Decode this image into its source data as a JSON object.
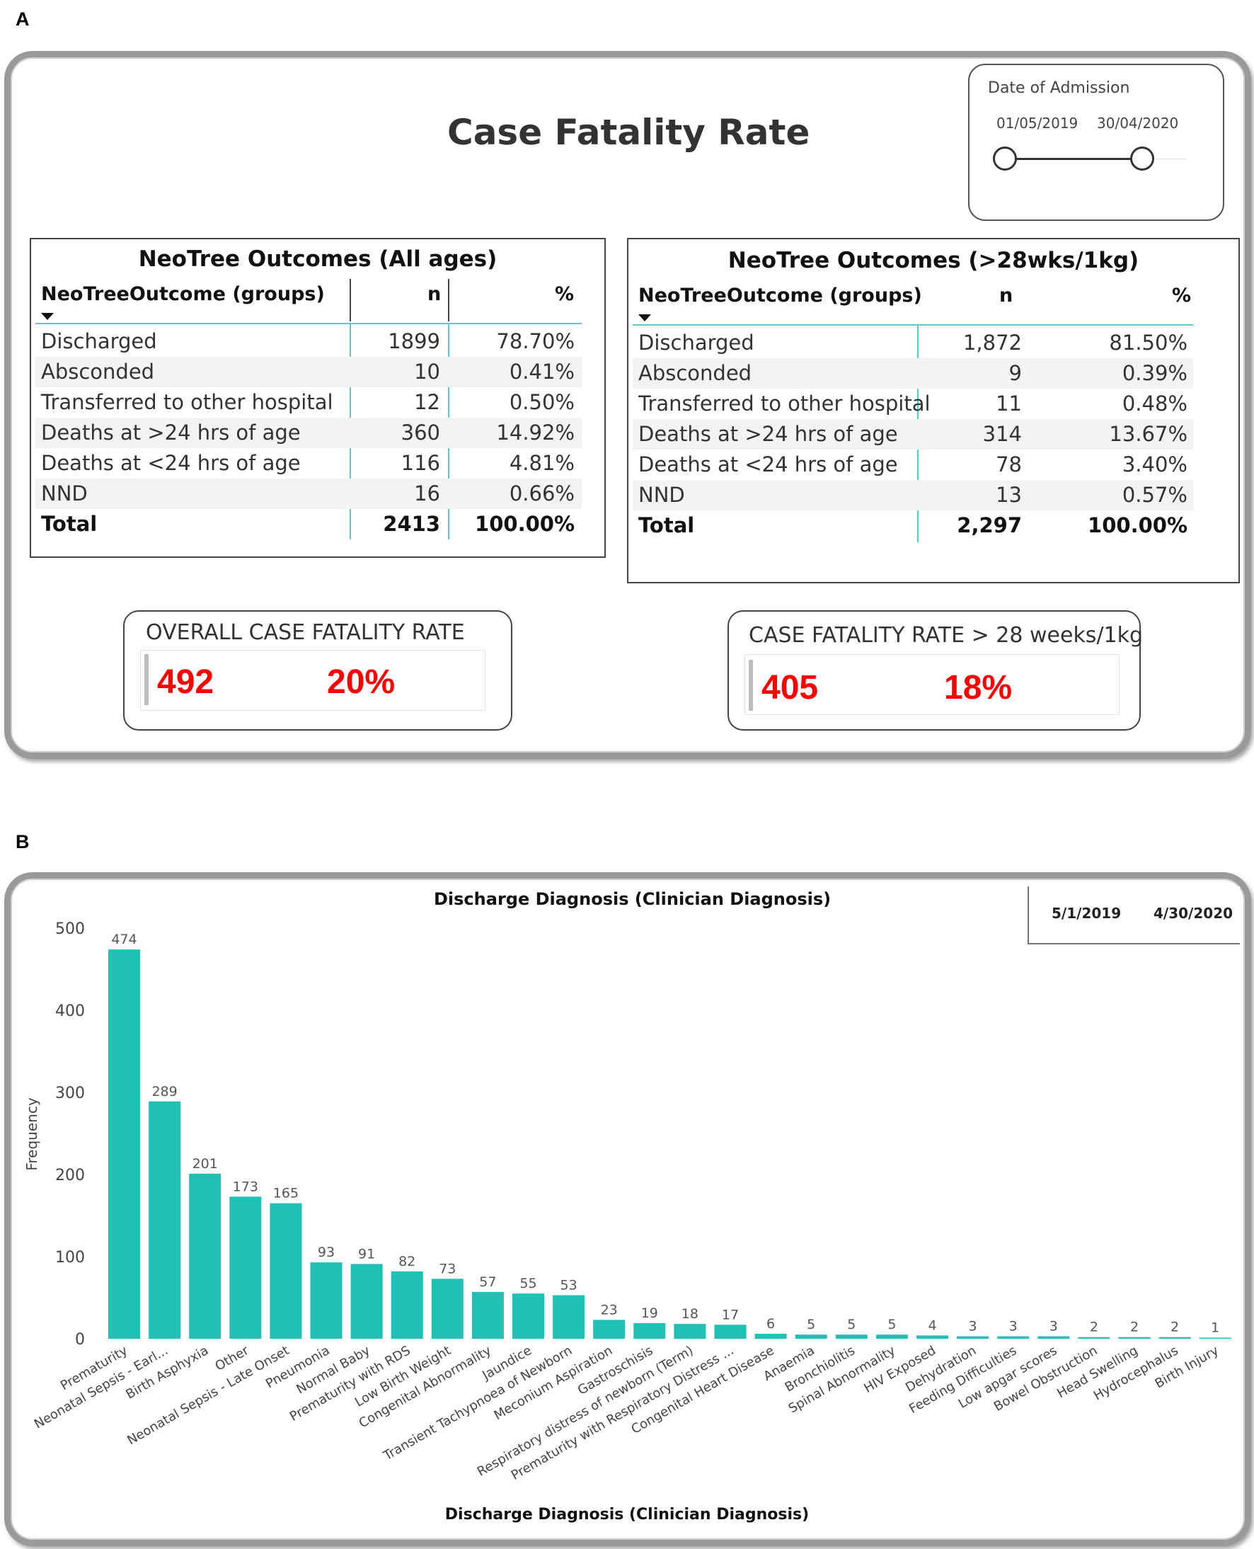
{
  "panels": {
    "a": "A",
    "b": "B"
  },
  "case_fatality": {
    "title": "Case Fatality Rate",
    "date_slicer": {
      "label": "Date of Admission",
      "start": "01/05/2019",
      "end": "30/04/2020"
    },
    "table_all": {
      "title": "NeoTree Outcomes (All ages)",
      "headers": [
        "NeoTreeOutcome (groups)",
        "n",
        "%"
      ],
      "rows": [
        {
          "label": "Discharged",
          "n": "1899",
          "pct": "78.70%"
        },
        {
          "label": "Absconded",
          "n": "10",
          "pct": "0.41%"
        },
        {
          "label": "Transferred to other hospital",
          "n": "12",
          "pct": "0.50%"
        },
        {
          "label": "Deaths at >24 hrs of age",
          "n": "360",
          "pct": "14.92%"
        },
        {
          "label": "Deaths at <24 hrs of age",
          "n": "116",
          "pct": "4.81%"
        },
        {
          "label": "NND",
          "n": "16",
          "pct": "0.66%"
        }
      ],
      "total": {
        "label": "Total",
        "n": "2413",
        "pct": "100.00%"
      }
    },
    "table_28wks": {
      "title": "NeoTree Outcomes (>28wks/1kg)",
      "headers": [
        "NeoTreeOutcome (groups)",
        "n",
        "%"
      ],
      "rows": [
        {
          "label": "Discharged",
          "n": "1,872",
          "pct": "81.50%"
        },
        {
          "label": "Absconded",
          "n": "9",
          "pct": "0.39%"
        },
        {
          "label": "Transferred to other hospital",
          "n": "11",
          "pct": "0.48%"
        },
        {
          "label": "Deaths at >24 hrs of age",
          "n": "314",
          "pct": "13.67%"
        },
        {
          "label": "Deaths at <24 hrs of age",
          "n": "78",
          "pct": "3.40%"
        },
        {
          "label": "NND",
          "n": "13",
          "pct": "0.57%"
        }
      ],
      "total": {
        "label": "Total",
        "n": "2,297",
        "pct": "100.00%"
      }
    },
    "kpi_overall": {
      "label": "OVERALL CASE FATALITY RATE",
      "count": "492",
      "rate": "20%"
    },
    "kpi_28wks": {
      "label": "CASE FATALITY RATE > 28 weeks/1kg",
      "count": "405",
      "rate": "18%"
    }
  },
  "date_range_b": {
    "start": "5/1/2019",
    "end": "4/30/2020"
  },
  "chart_data": {
    "type": "bar",
    "title": "Discharge Diagnosis (Clinician Diagnosis)",
    "xlabel": "Discharge Diagnosis (Clinician Diagnosis)",
    "ylabel": "Frequency",
    "ylim": [
      0,
      500
    ],
    "yticks": [
      0,
      100,
      200,
      300,
      400,
      500
    ],
    "bar_color": "#1fc1b6",
    "categories": [
      "Prematurity",
      "Neonatal Sepsis - Earl...",
      "Birth Asphyxia",
      "Other",
      "Neonatal Sepsis - Late Onset",
      "Pneumonia",
      "Normal Baby",
      "Prematurity with RDS",
      "Low Birth Weight",
      "Congenital Abnormality",
      "Jaundice",
      "Transient Tachypnoea of Newborn",
      "Meconium Aspiration",
      "Gastroschisis",
      "Respiratory distress of newborn (Term)",
      "Prematurity with Respiratory Distress ...",
      "Congenital Heart Disease",
      "Anaemia",
      "Bronchiolitis",
      "Spinal Abnormality",
      "HIV Exposed",
      "Dehydration",
      "Feeding Difficulties",
      "Low apgar scores",
      "Bowel Obstruction",
      "Head Swelling",
      "Hydrocephalus",
      "Birth Injury"
    ],
    "values": [
      474,
      289,
      201,
      173,
      165,
      93,
      91,
      82,
      73,
      57,
      55,
      53,
      23,
      19,
      18,
      17,
      6,
      5,
      5,
      5,
      4,
      3,
      3,
      3,
      2,
      2,
      2,
      1
    ]
  }
}
